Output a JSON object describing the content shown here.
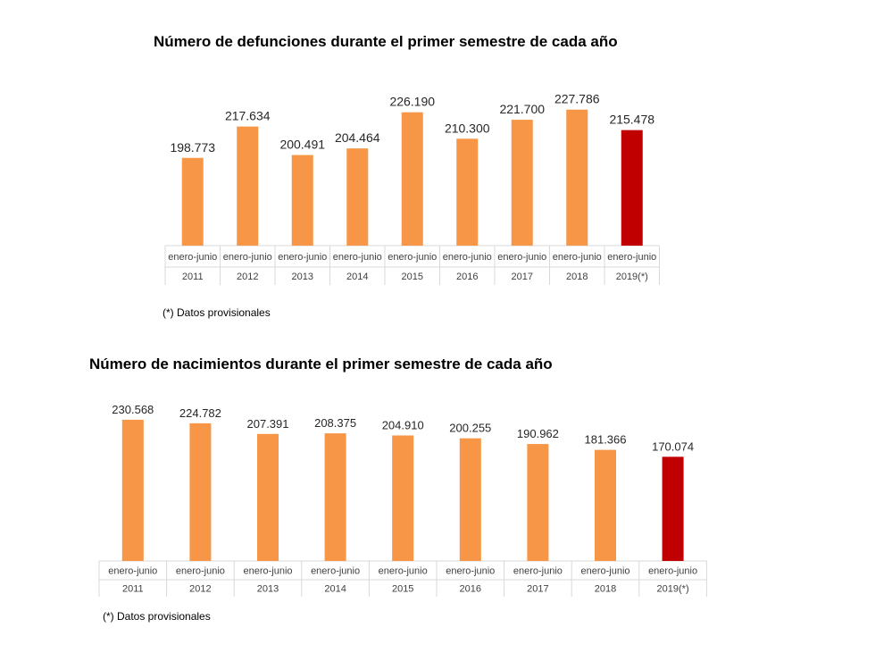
{
  "colors": {
    "bar": "#F79646",
    "highlight": "#C00000",
    "grid": "#D9D9D9"
  },
  "chart_data": [
    {
      "type": "bar",
      "title": "Número de defunciones durante el primer semestre de cada año",
      "category_top_label": "enero-junio",
      "categories": [
        "2011",
        "2012",
        "2013",
        "2014",
        "2015",
        "2016",
        "2017",
        "2018",
        "2019(*)"
      ],
      "values": [
        198773,
        217634,
        200491,
        204464,
        226190,
        210300,
        221700,
        227786,
        215478
      ],
      "value_labels": [
        "198.773",
        "217.634",
        "200.491",
        "204.464",
        "226.190",
        "210.300",
        "221.700",
        "227.786",
        "215.478"
      ],
      "highlight_index": 8,
      "xlabel": "",
      "ylabel": "",
      "ylim": [
        146000,
        240000
      ],
      "footnote": "(*) Datos provisionales"
    },
    {
      "type": "bar",
      "title": "Número de nacimientos durante el primer semestre de cada año",
      "category_top_label": "enero-junio",
      "categories": [
        "2011",
        "2012",
        "2013",
        "2014",
        "2015",
        "2016",
        "2017",
        "2018",
        "2019(*)"
      ],
      "values": [
        230568,
        224782,
        207391,
        208375,
        204910,
        200255,
        190962,
        181366,
        170074
      ],
      "value_labels": [
        "230.568",
        "224.782",
        "207.391",
        "208.375",
        "204.910",
        "200.255",
        "190.962",
        "181.366",
        "170.074"
      ],
      "highlight_index": 8,
      "xlabel": "",
      "ylabel": "",
      "ylim": [
        0,
        245000
      ],
      "footnote": "(*) Datos provisionales"
    }
  ]
}
